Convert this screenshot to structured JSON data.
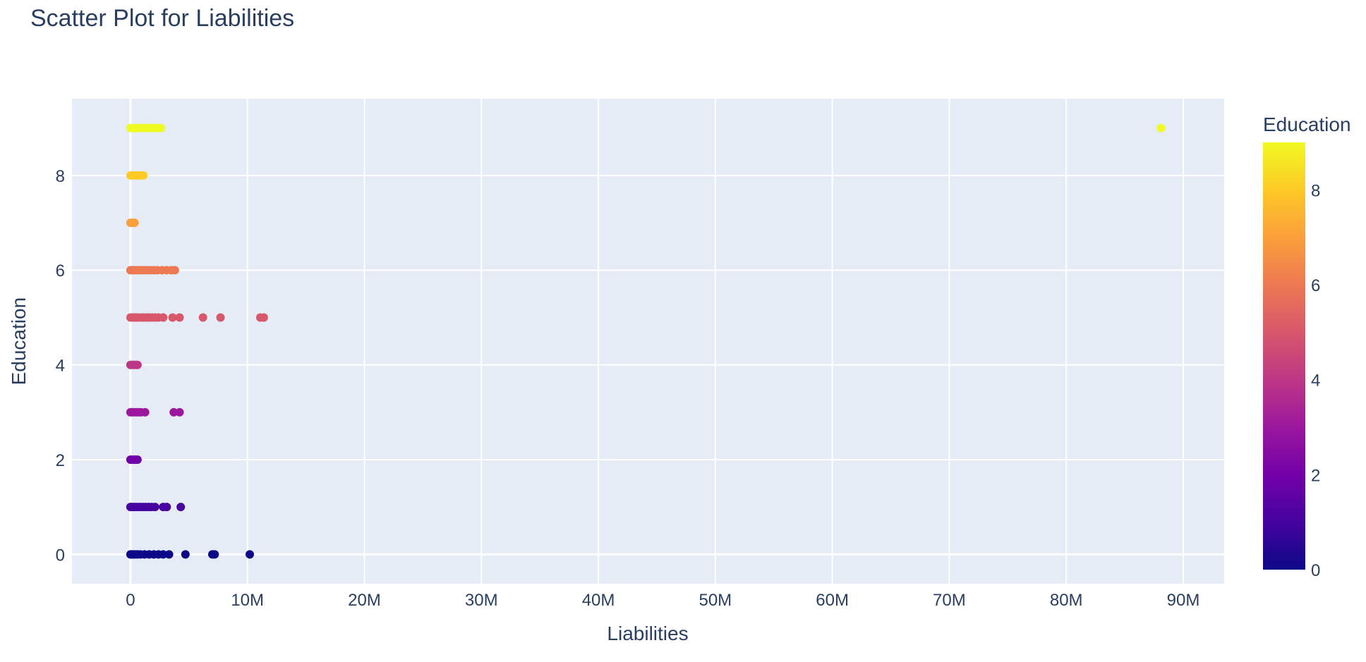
{
  "chart_data": {
    "type": "scatter",
    "title": "Scatter Plot for Liabilities",
    "xlabel": "Liabilities",
    "ylabel": "Education",
    "xlim": [
      -5000000,
      93500000
    ],
    "ylim": [
      -0.62,
      9.62
    ],
    "x_ticks": [
      0,
      10000000,
      20000000,
      30000000,
      40000000,
      50000000,
      60000000,
      70000000,
      80000000,
      90000000
    ],
    "x_tick_labels": [
      "0",
      "10M",
      "20M",
      "30M",
      "40M",
      "50M",
      "60M",
      "70M",
      "80M",
      "90M"
    ],
    "y_ticks": [
      0,
      2,
      4,
      6,
      8
    ],
    "y_tick_labels": [
      "0",
      "2",
      "4",
      "6",
      "8"
    ],
    "grid": true,
    "colorbar": {
      "title": "Education",
      "range": [
        0,
        9
      ],
      "ticks": [
        0,
        2,
        4,
        6,
        8
      ],
      "tick_labels": [
        "0",
        "2",
        "4",
        "6",
        "8"
      ],
      "colorscale": "plasma"
    },
    "series": [
      {
        "points": [
          {
            "x": 0,
            "y": 0
          },
          {
            "x": 100000,
            "y": 0
          },
          {
            "x": 250000,
            "y": 0
          },
          {
            "x": 400000,
            "y": 0
          },
          {
            "x": 600000,
            "y": 0
          },
          {
            "x": 850000,
            "y": 0
          },
          {
            "x": 1200000,
            "y": 0
          },
          {
            "x": 1600000,
            "y": 0
          },
          {
            "x": 2000000,
            "y": 0
          },
          {
            "x": 2400000,
            "y": 0
          },
          {
            "x": 2800000,
            "y": 0
          },
          {
            "x": 3300000,
            "y": 0
          },
          {
            "x": 4700000,
            "y": 0
          },
          {
            "x": 7000000,
            "y": 0
          },
          {
            "x": 7200000,
            "y": 0
          },
          {
            "x": 10200000,
            "y": 0
          },
          {
            "x": 0,
            "y": 1
          },
          {
            "x": 150000,
            "y": 1
          },
          {
            "x": 350000,
            "y": 1
          },
          {
            "x": 550000,
            "y": 1
          },
          {
            "x": 800000,
            "y": 1
          },
          {
            "x": 1050000,
            "y": 1
          },
          {
            "x": 1300000,
            "y": 1
          },
          {
            "x": 1550000,
            "y": 1
          },
          {
            "x": 1800000,
            "y": 1
          },
          {
            "x": 2100000,
            "y": 1
          },
          {
            "x": 2800000,
            "y": 1
          },
          {
            "x": 3100000,
            "y": 1
          },
          {
            "x": 4300000,
            "y": 1
          },
          {
            "x": 0,
            "y": 2
          },
          {
            "x": 150000,
            "y": 2
          },
          {
            "x": 300000,
            "y": 2
          },
          {
            "x": 450000,
            "y": 2
          },
          {
            "x": 600000,
            "y": 2
          },
          {
            "x": 0,
            "y": 3
          },
          {
            "x": 150000,
            "y": 3
          },
          {
            "x": 300000,
            "y": 3
          },
          {
            "x": 500000,
            "y": 3
          },
          {
            "x": 700000,
            "y": 3
          },
          {
            "x": 900000,
            "y": 3
          },
          {
            "x": 1250000,
            "y": 3
          },
          {
            "x": 3700000,
            "y": 3
          },
          {
            "x": 4200000,
            "y": 3
          },
          {
            "x": 0,
            "y": 4
          },
          {
            "x": 150000,
            "y": 4
          },
          {
            "x": 300000,
            "y": 4
          },
          {
            "x": 450000,
            "y": 4
          },
          {
            "x": 600000,
            "y": 4
          },
          {
            "x": 0,
            "y": 5
          },
          {
            "x": 200000,
            "y": 5
          },
          {
            "x": 400000,
            "y": 5
          },
          {
            "x": 600000,
            "y": 5
          },
          {
            "x": 850000,
            "y": 5
          },
          {
            "x": 1100000,
            "y": 5
          },
          {
            "x": 1350000,
            "y": 5
          },
          {
            "x": 1600000,
            "y": 5
          },
          {
            "x": 1850000,
            "y": 5
          },
          {
            "x": 2100000,
            "y": 5
          },
          {
            "x": 2400000,
            "y": 5
          },
          {
            "x": 2800000,
            "y": 5
          },
          {
            "x": 3600000,
            "y": 5
          },
          {
            "x": 4200000,
            "y": 5
          },
          {
            "x": 6200000,
            "y": 5
          },
          {
            "x": 7700000,
            "y": 5
          },
          {
            "x": 11100000,
            "y": 5
          },
          {
            "x": 11400000,
            "y": 5
          },
          {
            "x": 0,
            "y": 6
          },
          {
            "x": 200000,
            "y": 6
          },
          {
            "x": 400000,
            "y": 6
          },
          {
            "x": 650000,
            "y": 6
          },
          {
            "x": 900000,
            "y": 6
          },
          {
            "x": 1150000,
            "y": 6
          },
          {
            "x": 1400000,
            "y": 6
          },
          {
            "x": 1700000,
            "y": 6
          },
          {
            "x": 2000000,
            "y": 6
          },
          {
            "x": 2300000,
            "y": 6
          },
          {
            "x": 2700000,
            "y": 6
          },
          {
            "x": 3100000,
            "y": 6
          },
          {
            "x": 3500000,
            "y": 6
          },
          {
            "x": 3800000,
            "y": 6
          },
          {
            "x": 0,
            "y": 7
          },
          {
            "x": 150000,
            "y": 7
          },
          {
            "x": 350000,
            "y": 7
          },
          {
            "x": 0,
            "y": 8
          },
          {
            "x": 200000,
            "y": 8
          },
          {
            "x": 400000,
            "y": 8
          },
          {
            "x": 650000,
            "y": 8
          },
          {
            "x": 900000,
            "y": 8
          },
          {
            "x": 1100000,
            "y": 8
          },
          {
            "x": 0,
            "y": 9
          },
          {
            "x": 200000,
            "y": 9
          },
          {
            "x": 400000,
            "y": 9
          },
          {
            "x": 650000,
            "y": 9
          },
          {
            "x": 900000,
            "y": 9
          },
          {
            "x": 1150000,
            "y": 9
          },
          {
            "x": 1400000,
            "y": 9
          },
          {
            "x": 1700000,
            "y": 9
          },
          {
            "x": 2000000,
            "y": 9
          },
          {
            "x": 2300000,
            "y": 9
          },
          {
            "x": 2600000,
            "y": 9
          },
          {
            "x": 88100000,
            "y": 9
          }
        ]
      }
    ]
  }
}
